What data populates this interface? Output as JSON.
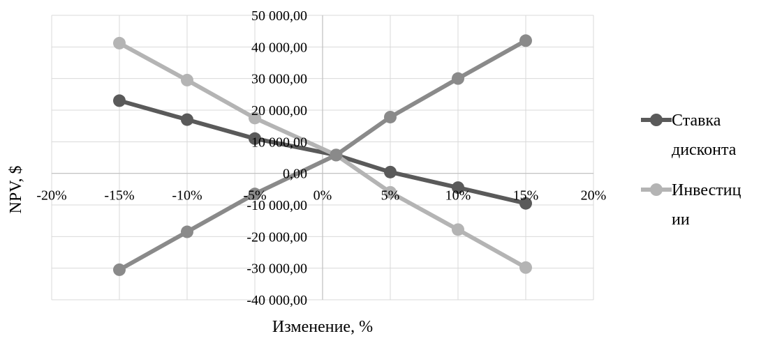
{
  "chart_data": {
    "type": "scatter",
    "title": "",
    "xlabel": "Изменение, %",
    "ylabel": "NPV, $",
    "xlim": [
      -20,
      20
    ],
    "ylim": [
      -40000,
      50000
    ],
    "x_ticks": [
      {
        "value": -20,
        "label": "-20%"
      },
      {
        "value": -15,
        "label": "-15%"
      },
      {
        "value": -10,
        "label": "-10%"
      },
      {
        "value": -5,
        "label": "-5%"
      },
      {
        "value": 0,
        "label": "0%"
      },
      {
        "value": 5,
        "label": "5%"
      },
      {
        "value": 10,
        "label": "10%"
      },
      {
        "value": 15,
        "label": "15%"
      },
      {
        "value": 20,
        "label": "20%"
      }
    ],
    "y_ticks": [
      {
        "value": 50000,
        "label": "50 000,00"
      },
      {
        "value": 40000,
        "label": "40 000,00"
      },
      {
        "value": 30000,
        "label": "30 000,00"
      },
      {
        "value": 20000,
        "label": "20 000,00"
      },
      {
        "value": 10000,
        "label": "10 000,00"
      },
      {
        "value": 0,
        "label": "0,00"
      },
      {
        "value": -10000,
        "label": "-10 000,00"
      },
      {
        "value": -20000,
        "label": "-20 000,00"
      },
      {
        "value": -30000,
        "label": "-30 000,00"
      },
      {
        "value": -40000,
        "label": "-40 000,00"
      }
    ],
    "grid": true,
    "legend_position": "right",
    "series": [
      {
        "legend": [
          "Ставка",
          "дисконта"
        ],
        "color": "#5a5a5a",
        "x": [
          -15,
          -10,
          -5,
          1,
          5,
          10,
          15
        ],
        "y": [
          23000,
          17000,
          11000,
          5800,
          400,
          -4500,
          -9500
        ]
      },
      {
        "legend": [
          "Инвестиц",
          "ии"
        ],
        "color": "#b4b4b4",
        "x": [
          -15,
          -10,
          -5,
          1,
          5,
          10,
          15
        ],
        "y": [
          41200,
          29500,
          17500,
          5800,
          -6000,
          -17800,
          -29800
        ]
      },
      {
        "legend": [],
        "color": "#8a8a8a",
        "x": [
          -15,
          -10,
          -5,
          1,
          5,
          10,
          15
        ],
        "y": [
          -30500,
          -18500,
          -6500,
          5800,
          17800,
          30000,
          42000
        ]
      }
    ]
  }
}
